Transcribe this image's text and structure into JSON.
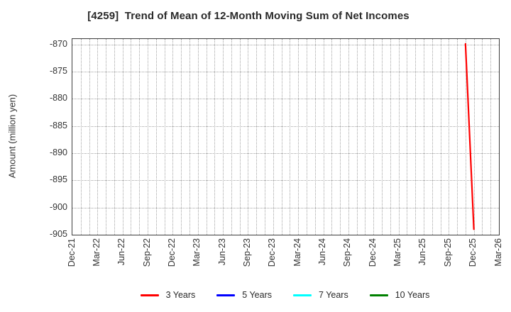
{
  "title": "[4259]  Trend of Mean of 12-Month Moving Sum of Net Incomes",
  "colors": {
    "red": "#ff0000",
    "blue": "#0000ff",
    "cyan": "#00ffff",
    "green": "#008000",
    "grid": "#a4a4a4",
    "border": "#3c3c3c",
    "text": "#333333"
  },
  "chart_data": {
    "type": "line",
    "title": "[4259]  Trend of Mean of 12-Month Moving Sum of Net Incomes",
    "xlabel": "",
    "ylabel": "Amount (million yen)",
    "ylim": [
      -905,
      -869
    ],
    "y_ticks": [
      -870,
      -875,
      -880,
      -885,
      -890,
      -895,
      -900,
      -905
    ],
    "x_start": "Dec-21",
    "x_end": "Mar-26",
    "x_tick_labels": [
      "Dec-21",
      "Mar-22",
      "Jun-22",
      "Sep-22",
      "Dec-22",
      "Mar-23",
      "Jun-23",
      "Sep-23",
      "Dec-23",
      "Mar-24",
      "Jun-24",
      "Sep-24",
      "Dec-24",
      "Mar-25",
      "Jun-25",
      "Sep-25",
      "Dec-25",
      "Mar-26"
    ],
    "grid": "dotted; vertical line every month, horizontal line every 5 units",
    "legend_position": "bottom",
    "series": [
      {
        "name": "3 Years",
        "color": "#ff0000",
        "points": [
          {
            "x": "Nov-25",
            "y": -869.9
          },
          {
            "x": "Dec-25",
            "y": -904.0
          }
        ]
      },
      {
        "name": "5 Years",
        "color": "#0000ff",
        "points": []
      },
      {
        "name": "7 Years",
        "color": "#00ffff",
        "points": []
      },
      {
        "name": "10 Years",
        "color": "#008000",
        "points": []
      }
    ]
  },
  "legend": {
    "items": [
      {
        "label": "3 Years",
        "color": "#ff0000"
      },
      {
        "label": "5 Years",
        "color": "#0000ff"
      },
      {
        "label": "7 Years",
        "color": "#00ffff"
      },
      {
        "label": "10 Years",
        "color": "#008000"
      }
    ]
  }
}
